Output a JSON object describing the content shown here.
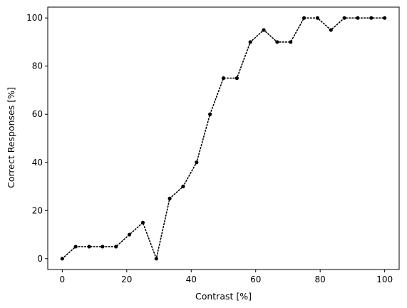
{
  "chart_data": {
    "type": "line",
    "title": "",
    "xlabel": "Contrast [%]",
    "ylabel": "Correct Responses [%]",
    "xlim": [
      -4.5,
      104.5
    ],
    "ylim": [
      -4.5,
      104.5
    ],
    "xticks": [
      0,
      20,
      40,
      60,
      80,
      100
    ],
    "yticks": [
      0,
      20,
      40,
      60,
      80,
      100
    ],
    "grid": false,
    "legend": "none",
    "line_style": "dotted",
    "marker": "circle",
    "color": "#000000",
    "series": [
      {
        "x": [
          0,
          4.17,
          8.33,
          12.5,
          16.67,
          20.83,
          25,
          29.17,
          33.33,
          37.5,
          41.67,
          45.83,
          50,
          54.17,
          58.33,
          62.5,
          66.67,
          70.83,
          75,
          79.17,
          83.33,
          87.5,
          91.67,
          95.83,
          100
        ],
        "y": [
          0,
          5,
          5,
          5,
          5,
          10,
          15,
          0,
          25,
          30,
          40,
          60,
          75,
          75,
          90,
          95,
          90,
          90,
          100,
          100,
          95,
          100,
          100,
          100,
          100
        ]
      }
    ]
  }
}
